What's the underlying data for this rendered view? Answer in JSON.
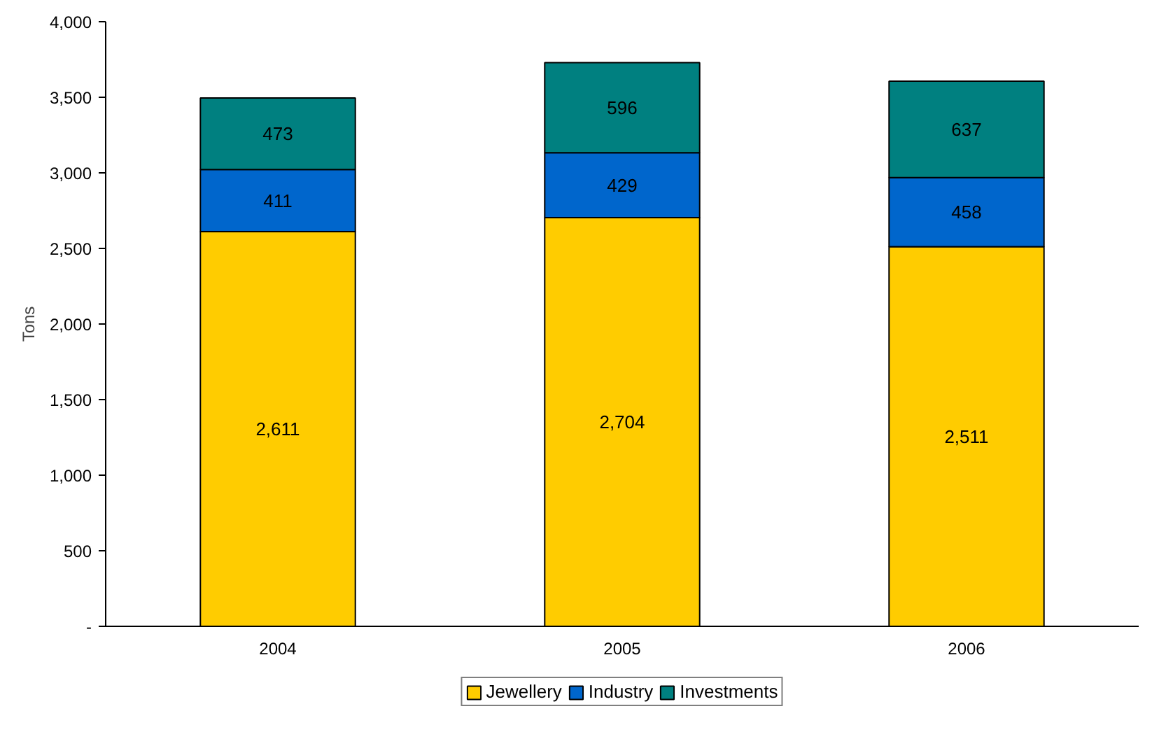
{
  "chart_data": {
    "type": "bar",
    "stacked": true,
    "ylabel": "Tons",
    "categories": [
      "2004",
      "2005",
      "2006"
    ],
    "series": [
      {
        "name": "Jewellery",
        "color": "#ffcc00",
        "values": [
          2611,
          2704,
          2511
        ],
        "value_labels": [
          "2,611",
          "2,704",
          "2,511"
        ]
      },
      {
        "name": "Industry",
        "color": "#0066cc",
        "values": [
          411,
          429,
          458
        ],
        "value_labels": [
          "411",
          "429",
          "458"
        ]
      },
      {
        "name": "Investments",
        "color": "#008080",
        "values": [
          473,
          596,
          637
        ],
        "value_labels": [
          "473",
          "596",
          "637"
        ]
      }
    ],
    "ylim": [
      0,
      4000
    ],
    "yticks": [
      {
        "value": 0,
        "label": "-"
      },
      {
        "value": 500,
        "label": "500"
      },
      {
        "value": 1000,
        "label": "1,000"
      },
      {
        "value": 1500,
        "label": "1,500"
      },
      {
        "value": 2000,
        "label": "2,000"
      },
      {
        "value": 2500,
        "label": "2,500"
      },
      {
        "value": 3000,
        "label": "3,000"
      },
      {
        "value": 3500,
        "label": "3,500"
      },
      {
        "value": 4000,
        "label": "4,000"
      }
    ],
    "legend": "bottom"
  }
}
